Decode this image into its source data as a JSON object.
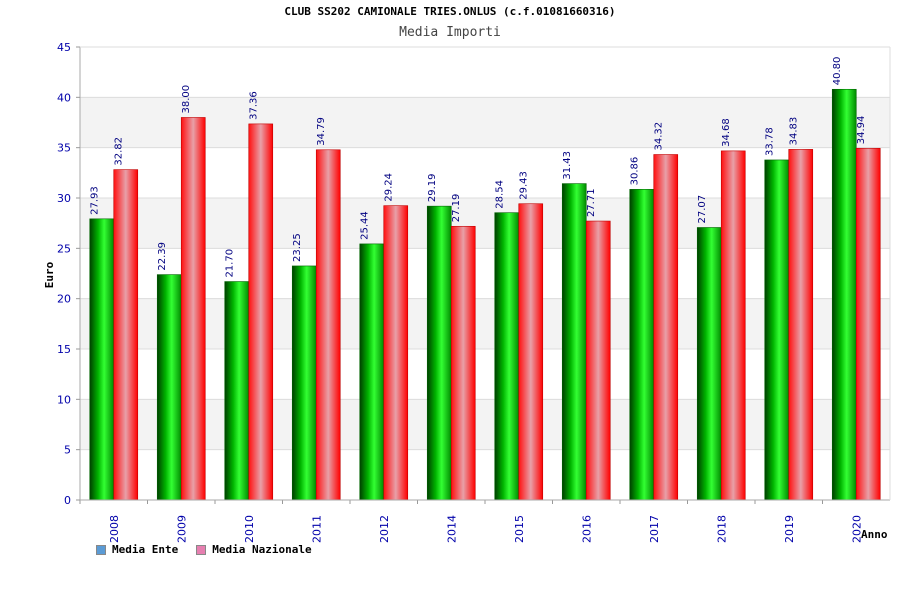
{
  "chart_data": {
    "type": "bar",
    "title": "CLUB SS202 CAMIONALE TRIES.ONLUS (c.f.01081660316)",
    "subtitle": "Media Importi",
    "xlabel": "Anno",
    "ylabel": "Euro",
    "ylim": [
      0,
      45
    ],
    "yticks": [
      "0",
      "5",
      "10",
      "15",
      "20",
      "25",
      "30",
      "35",
      "40",
      "45"
    ],
    "categories": [
      "2008",
      "2009",
      "2010",
      "2011",
      "2012",
      "2014",
      "2015",
      "2016",
      "2017",
      "2018",
      "2019",
      "2020"
    ],
    "series": [
      {
        "name": "Media Ente",
        "color": "#00a000",
        "legend_color": "#5b9bd5",
        "values": [
          27.93,
          22.39,
          21.7,
          23.25,
          25.44,
          29.19,
          28.54,
          31.43,
          30.86,
          27.07,
          33.78,
          40.8
        ],
        "labels": [
          "27.93",
          "22.39",
          "21.70",
          "23.25",
          "25.44",
          "29.19",
          "28.54",
          "31.43",
          "30.86",
          "27.07",
          "33.78",
          "40.80"
        ]
      },
      {
        "name": "Media Nazionale",
        "color": "#ff0000",
        "legend_color": "#e67fb0",
        "values": [
          32.82,
          38.0,
          37.36,
          34.79,
          29.24,
          27.19,
          29.43,
          27.71,
          34.32,
          34.68,
          34.83,
          34.94
        ],
        "labels": [
          "32.82",
          "38.00",
          "37.36",
          "34.79",
          "29.24",
          "27.19",
          "29.43",
          "27.71",
          "34.32",
          "34.68",
          "34.83",
          "34.94"
        ]
      }
    ],
    "legend_position": "bottom-left"
  }
}
